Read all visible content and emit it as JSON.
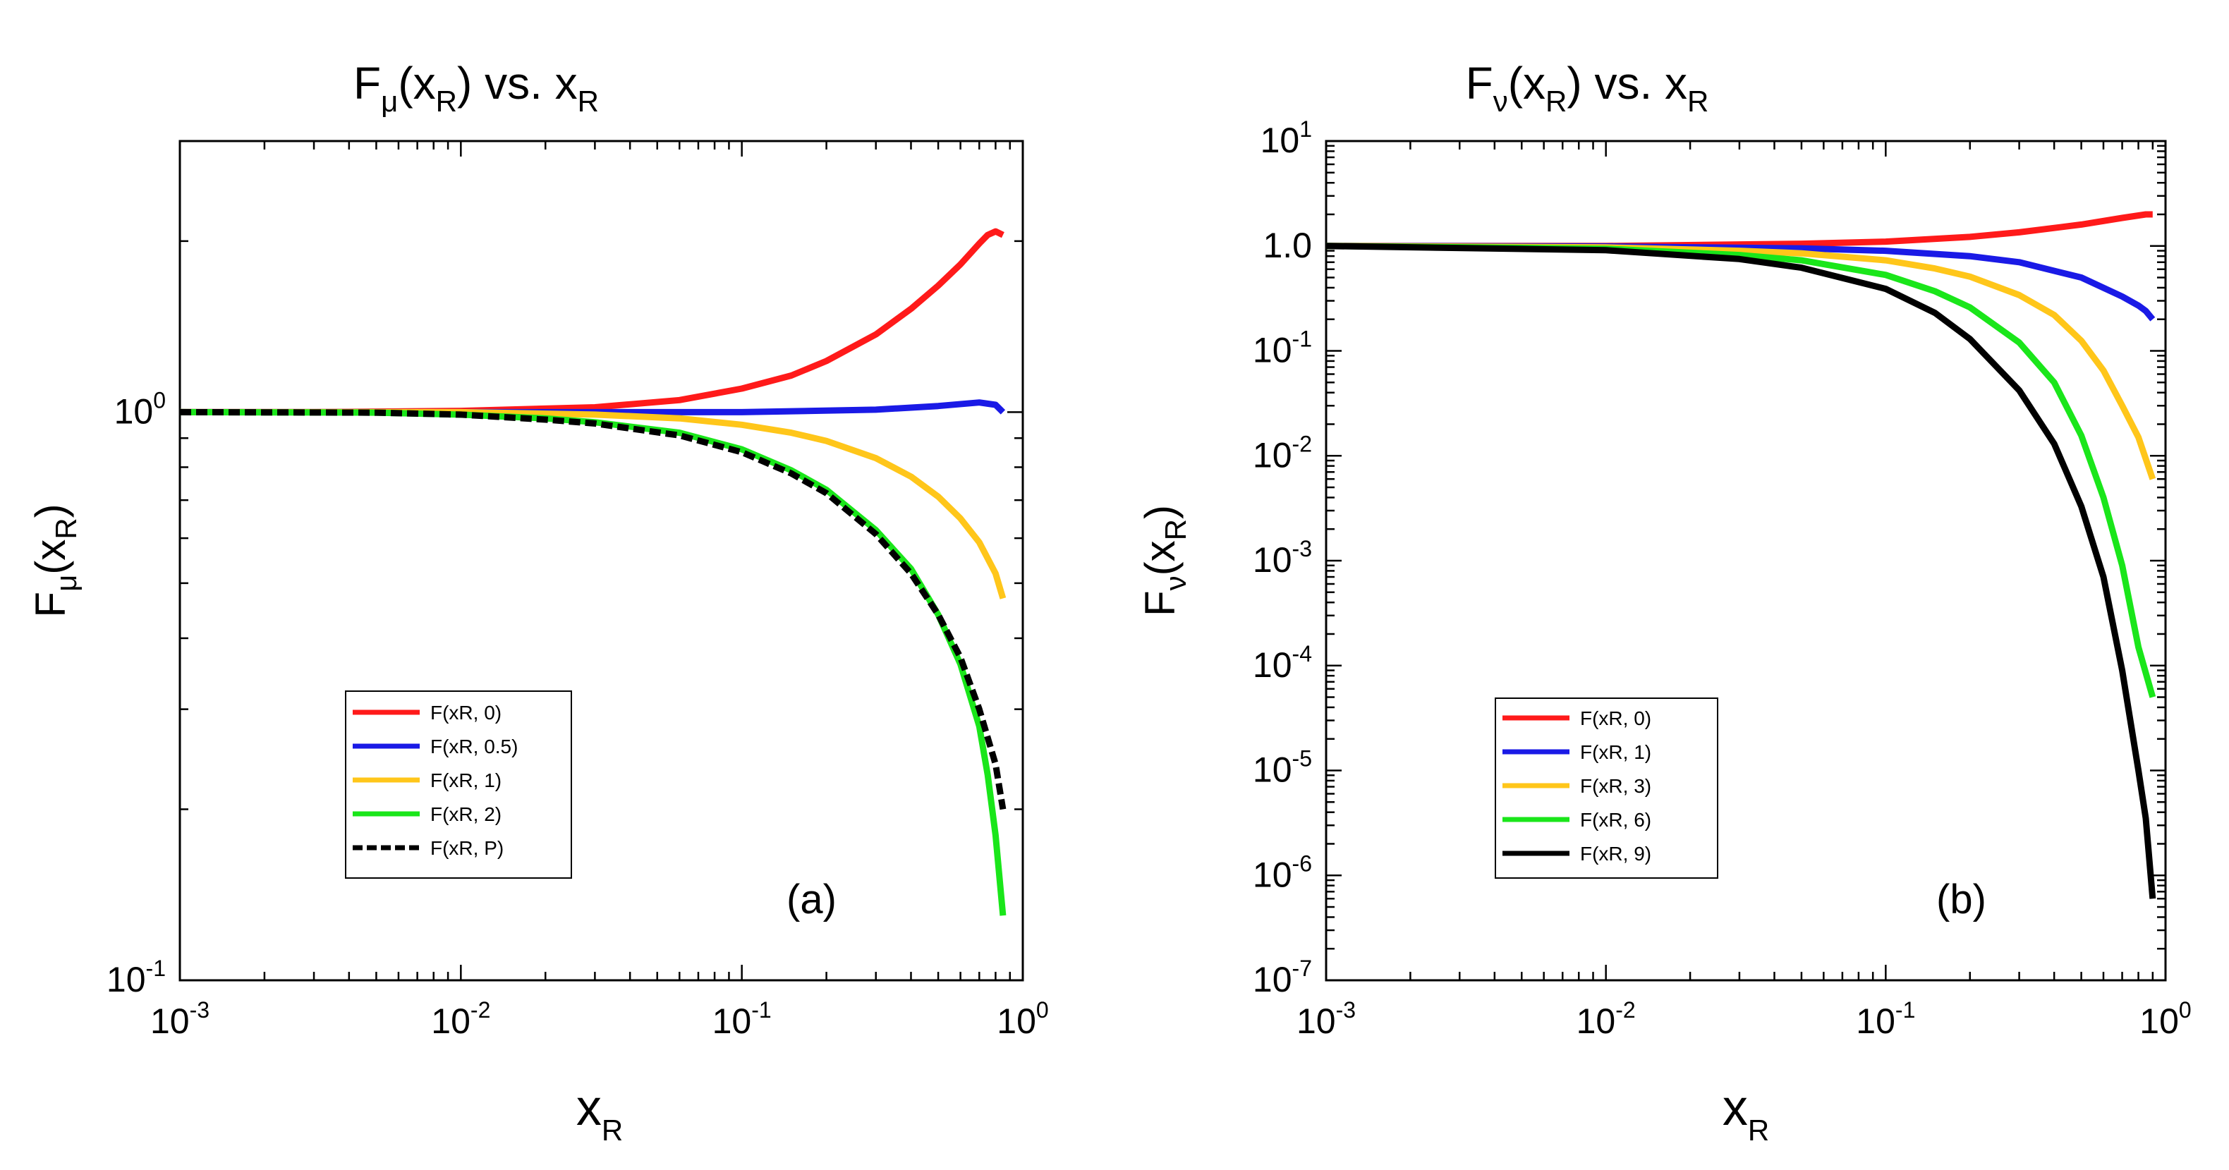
{
  "chart_data": [
    {
      "type": "line",
      "panel": "a",
      "title": {
        "main": "F",
        "sub1": "μ",
        "mid": "(x",
        "sub2": "R",
        "end": ") vs. x",
        "sub3": "R"
      },
      "xlabel": {
        "main": "x",
        "sub": "R"
      },
      "ylabel": {
        "main": "F",
        "sub1": "μ",
        "mid": "(x",
        "sub2": "R",
        "end": ")"
      },
      "xscale": "log",
      "yscale": "log",
      "xlim": [
        0.001,
        1.0
      ],
      "ylim": [
        0.1,
        3.0
      ],
      "xticks": [
        {
          "base": "10",
          "exp": "-3"
        },
        {
          "base": "10",
          "exp": "-2"
        },
        {
          "base": "10",
          "exp": "-1"
        },
        {
          "base": "10",
          "exp": "0"
        }
      ],
      "yticks": [
        {
          "base": "10",
          "exp": "-1"
        },
        {
          "base": "10",
          "exp": "0"
        }
      ],
      "legend_position": "bottom-left",
      "panel_label": "(a)",
      "series": [
        {
          "name": "F(xR, 0)",
          "color": "#ff1a1a",
          "dash": "solid",
          "x": [
            0.001,
            0.003,
            0.01,
            0.03,
            0.06,
            0.1,
            0.15,
            0.2,
            0.3,
            0.4,
            0.5,
            0.6,
            0.7,
            0.75,
            0.8,
            0.85
          ],
          "y": [
            1.0,
            1.0,
            1.005,
            1.02,
            1.05,
            1.1,
            1.16,
            1.23,
            1.37,
            1.52,
            1.67,
            1.82,
            1.98,
            2.05,
            2.08,
            2.05
          ]
        },
        {
          "name": "F(xR, 0.5)",
          "color": "#1a1ae6",
          "dash": "solid",
          "x": [
            0.001,
            0.01,
            0.1,
            0.3,
            0.5,
            0.7,
            0.8,
            0.85
          ],
          "y": [
            1.0,
            1.0,
            1.0,
            1.01,
            1.025,
            1.04,
            1.03,
            1.0
          ]
        },
        {
          "name": "F(xR, 1)",
          "color": "#ffc61a",
          "dash": "solid",
          "x": [
            0.001,
            0.01,
            0.03,
            0.06,
            0.1,
            0.15,
            0.2,
            0.3,
            0.4,
            0.5,
            0.6,
            0.7,
            0.8,
            0.85
          ],
          "y": [
            1.0,
            1.0,
            0.99,
            0.975,
            0.95,
            0.92,
            0.89,
            0.83,
            0.77,
            0.71,
            0.65,
            0.59,
            0.52,
            0.47
          ]
        },
        {
          "name": "F(xR, 2)",
          "color": "#1ae61a",
          "dash": "solid",
          "x": [
            0.001,
            0.005,
            0.01,
            0.02,
            0.03,
            0.06,
            0.1,
            0.15,
            0.2,
            0.3,
            0.4,
            0.5,
            0.6,
            0.7,
            0.75,
            0.8,
            0.85
          ],
          "y": [
            1.0,
            0.998,
            0.99,
            0.975,
            0.96,
            0.92,
            0.86,
            0.79,
            0.73,
            0.62,
            0.53,
            0.44,
            0.36,
            0.28,
            0.23,
            0.18,
            0.13
          ]
        },
        {
          "name": "F(xR, P)",
          "color": "#000000",
          "dash": "dashed",
          "x": [
            0.001,
            0.005,
            0.01,
            0.02,
            0.03,
            0.06,
            0.1,
            0.15,
            0.2,
            0.3,
            0.4,
            0.5,
            0.6,
            0.7,
            0.8,
            0.85
          ],
          "y": [
            1.0,
            0.998,
            0.99,
            0.97,
            0.955,
            0.91,
            0.85,
            0.78,
            0.72,
            0.61,
            0.52,
            0.44,
            0.37,
            0.3,
            0.24,
            0.2
          ]
        }
      ]
    },
    {
      "type": "line",
      "panel": "b",
      "title": {
        "main": "F",
        "sub1": "ν",
        "mid": "(x",
        "sub2": "R",
        "end": ") vs. x",
        "sub3": "R"
      },
      "xlabel": {
        "main": "x",
        "sub": "R"
      },
      "ylabel": {
        "main": "F",
        "sub1": "ν",
        "mid": "(x",
        "sub2": "R",
        "end": ")"
      },
      "xscale": "log",
      "yscale": "log",
      "xlim": [
        0.001,
        1.0
      ],
      "ylim": [
        1e-07,
        10
      ],
      "xticks": [
        {
          "base": "10",
          "exp": "-3"
        },
        {
          "base": "10",
          "exp": "-2"
        },
        {
          "base": "10",
          "exp": "-1"
        },
        {
          "base": "10",
          "exp": "0"
        }
      ],
      "yticks": [
        {
          "base": "10",
          "exp": "-7"
        },
        {
          "base": "10",
          "exp": "-6"
        },
        {
          "base": "10",
          "exp": "-5"
        },
        {
          "base": "10",
          "exp": "-4"
        },
        {
          "base": "10",
          "exp": "-3"
        },
        {
          "base": "10",
          "exp": "-2"
        },
        {
          "base": "10",
          "exp": "-1"
        },
        {
          "base": "1.0",
          "exp": ""
        },
        {
          "base": "10",
          "exp": "1"
        }
      ],
      "legend_position": "bottom-left",
      "panel_label": "(b)",
      "series": [
        {
          "name": "F(xR, 0)",
          "color": "#ff1a1a",
          "dash": "solid",
          "x": [
            0.001,
            0.01,
            0.05,
            0.1,
            0.2,
            0.3,
            0.5,
            0.7,
            0.85,
            0.9
          ],
          "y": [
            1.0,
            1.0,
            1.05,
            1.1,
            1.22,
            1.35,
            1.6,
            1.85,
            2.0,
            2.0
          ]
        },
        {
          "name": "F(xR, 1)",
          "color": "#1a1ae6",
          "dash": "solid",
          "x": [
            0.001,
            0.01,
            0.05,
            0.1,
            0.2,
            0.3,
            0.5,
            0.7,
            0.8,
            0.85,
            0.9
          ],
          "y": [
            1.0,
            0.99,
            0.95,
            0.9,
            0.8,
            0.7,
            0.5,
            0.33,
            0.27,
            0.24,
            0.2
          ]
        },
        {
          "name": "F(xR, 3)",
          "color": "#ffc61a",
          "dash": "solid",
          "x": [
            0.001,
            0.01,
            0.03,
            0.05,
            0.1,
            0.15,
            0.2,
            0.3,
            0.4,
            0.5,
            0.6,
            0.7,
            0.8,
            0.9
          ],
          "y": [
            1.0,
            0.97,
            0.9,
            0.85,
            0.73,
            0.61,
            0.51,
            0.34,
            0.22,
            0.125,
            0.065,
            0.03,
            0.015,
            0.006
          ]
        },
        {
          "name": "F(xR, 6)",
          "color": "#1ae61a",
          "dash": "solid",
          "x": [
            0.001,
            0.01,
            0.03,
            0.05,
            0.1,
            0.15,
            0.2,
            0.3,
            0.4,
            0.5,
            0.6,
            0.7,
            0.8,
            0.9
          ],
          "y": [
            1.0,
            0.94,
            0.82,
            0.73,
            0.53,
            0.37,
            0.26,
            0.12,
            0.05,
            0.0156,
            0.004,
            0.0009,
            0.00015,
            5e-05
          ]
        },
        {
          "name": "F(xR, 9)",
          "color": "#000000",
          "dash": "solid",
          "x": [
            0.001,
            0.01,
            0.03,
            0.05,
            0.1,
            0.15,
            0.2,
            0.3,
            0.4,
            0.5,
            0.6,
            0.7,
            0.8,
            0.85,
            0.9
          ],
          "y": [
            1.0,
            0.91,
            0.75,
            0.62,
            0.39,
            0.23,
            0.13,
            0.042,
            0.013,
            0.0033,
            0.0007,
            9e-05,
            1e-05,
            3.5e-06,
            6e-07
          ]
        }
      ]
    }
  ]
}
